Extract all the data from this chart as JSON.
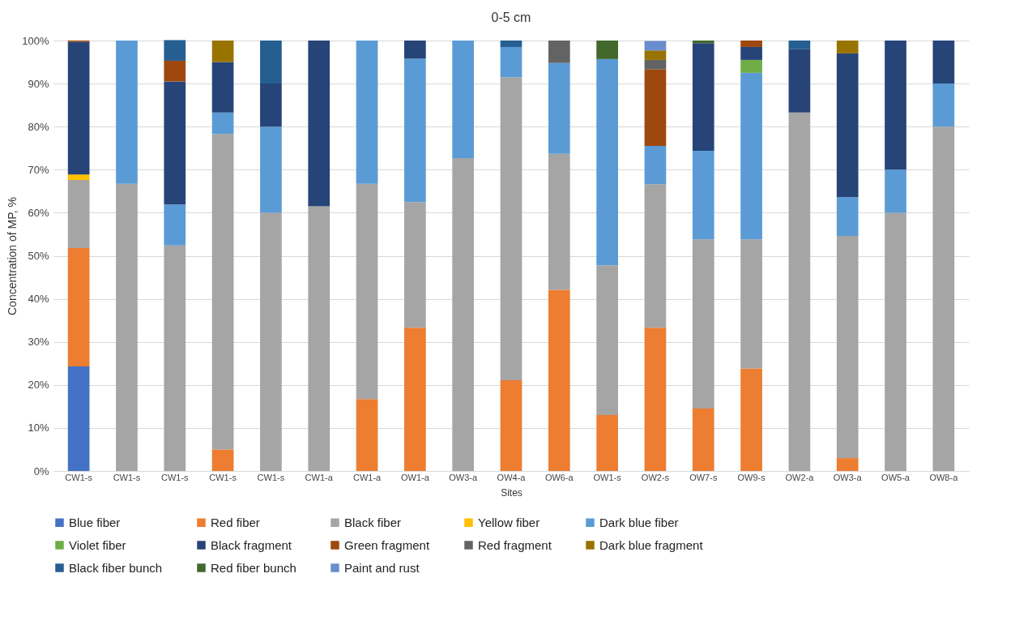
{
  "chart_data": {
    "type": "bar",
    "title": "0-5 cm",
    "xlabel": "Sites",
    "ylabel": "Concentration of MP, %",
    "stacked": true,
    "grid": "y",
    "legend": "bottom",
    "categories": [
      "CW1-s",
      "CW1-s",
      "CW1-s",
      "CW1-s",
      "CW1-s",
      "CW1-a",
      "CW1-a",
      "OW1-a",
      "OW3-a",
      "OW4-a",
      "OW6-a",
      "OW1-s",
      "OW2-s",
      "OW7-s",
      "OW9-s",
      "OW2-a",
      "OW3-a",
      "OW5-a",
      "OW8-a"
    ],
    "ylim": [
      0,
      100
    ],
    "yticks": [
      {
        "value": 0,
        "label": "0%"
      },
      {
        "value": 10,
        "label": "10%"
      },
      {
        "value": 20,
        "label": "20%"
      },
      {
        "value": 30,
        "label": "30%"
      },
      {
        "value": 40,
        "label": "40%"
      },
      {
        "value": 50,
        "label": "50%"
      },
      {
        "value": 60,
        "label": "60%"
      },
      {
        "value": 70,
        "label": "70%"
      },
      {
        "value": 80,
        "label": "80%"
      },
      {
        "value": 90,
        "label": "90%"
      },
      {
        "value": 100,
        "label": "100%"
      }
    ],
    "series": [
      {
        "name": "Blue fiber",
        "color": "#4472c4",
        "values": [
          24.3,
          null,
          null,
          null,
          null,
          null,
          null,
          null,
          null,
          null,
          null,
          null,
          null,
          null,
          null,
          null,
          null,
          null,
          null
        ]
      },
      {
        "name": "Red fiber",
        "color": "#ed7d31",
        "values": [
          27.5,
          null,
          null,
          5,
          null,
          null,
          16.7,
          33.3,
          null,
          21.1,
          42.1,
          13,
          33.3,
          14.5,
          23.8,
          null,
          3,
          null,
          null
        ]
      },
      {
        "name": "Black fiber",
        "color": "#a5a5a5",
        "values": [
          15.8,
          66.7,
          52.4,
          73.3,
          60,
          61.5,
          50,
          29.2,
          72.7,
          70.4,
          31.6,
          34.8,
          33.3,
          39.3,
          30,
          83.3,
          51.6,
          60,
          80
        ]
      },
      {
        "name": "Yellow fiber",
        "color": "#ffc000",
        "values": [
          1.3,
          null,
          null,
          null,
          null,
          null,
          null,
          null,
          null,
          null,
          null,
          null,
          null,
          null,
          null,
          null,
          null,
          null,
          null
        ]
      },
      {
        "name": "Dark blue fiber",
        "color": "#5b9bd5",
        "values": [
          null,
          33.3,
          9.5,
          5,
          20,
          null,
          33.3,
          33.3,
          27.3,
          7,
          21.1,
          47.9,
          8.9,
          20.6,
          38.7,
          null,
          9,
          10,
          10
        ]
      },
      {
        "name": "Violet fiber",
        "color": "#70ad47",
        "values": [
          null,
          null,
          null,
          null,
          null,
          null,
          null,
          null,
          null,
          null,
          null,
          null,
          null,
          null,
          3,
          null,
          null,
          null,
          null
        ]
      },
      {
        "name": "Black fragment",
        "color": "#264478",
        "values": [
          30.8,
          null,
          28.6,
          11.7,
          10,
          38.5,
          null,
          4.2,
          null,
          null,
          null,
          null,
          null,
          25,
          3,
          14.7,
          33.4,
          30,
          10
        ]
      },
      {
        "name": "Green fragment",
        "color": "#9e480e",
        "values": [
          0.3,
          null,
          4.8,
          null,
          null,
          null,
          null,
          null,
          null,
          null,
          null,
          null,
          17.8,
          null,
          1.5,
          null,
          null,
          null,
          null
        ]
      },
      {
        "name": "Red fragment",
        "color": "#636363",
        "values": [
          null,
          null,
          null,
          null,
          null,
          null,
          null,
          null,
          null,
          null,
          5.2,
          null,
          2.2,
          null,
          null,
          null,
          null,
          null,
          null
        ]
      },
      {
        "name": "Dark blue fragment",
        "color": "#997300",
        "values": [
          null,
          null,
          null,
          5,
          null,
          null,
          null,
          null,
          null,
          null,
          null,
          null,
          2.2,
          null,
          null,
          null,
          3,
          null,
          null
        ]
      },
      {
        "name": "Black fiber bunch",
        "color": "#255e91",
        "values": [
          null,
          null,
          4.8,
          null,
          10,
          null,
          null,
          null,
          null,
          1.5,
          null,
          null,
          null,
          null,
          null,
          2,
          null,
          null,
          null
        ]
      },
      {
        "name": "Red fiber bunch",
        "color": "#43682b",
        "values": [
          null,
          null,
          null,
          null,
          null,
          null,
          null,
          null,
          null,
          null,
          null,
          4.3,
          null,
          0.6,
          null,
          null,
          null,
          null,
          null
        ]
      },
      {
        "name": "Paint and rust",
        "color": "#698ed0",
        "values": [
          null,
          null,
          null,
          null,
          null,
          null,
          null,
          null,
          null,
          null,
          null,
          null,
          2.2,
          null,
          null,
          null,
          null,
          null,
          null
        ]
      }
    ]
  }
}
